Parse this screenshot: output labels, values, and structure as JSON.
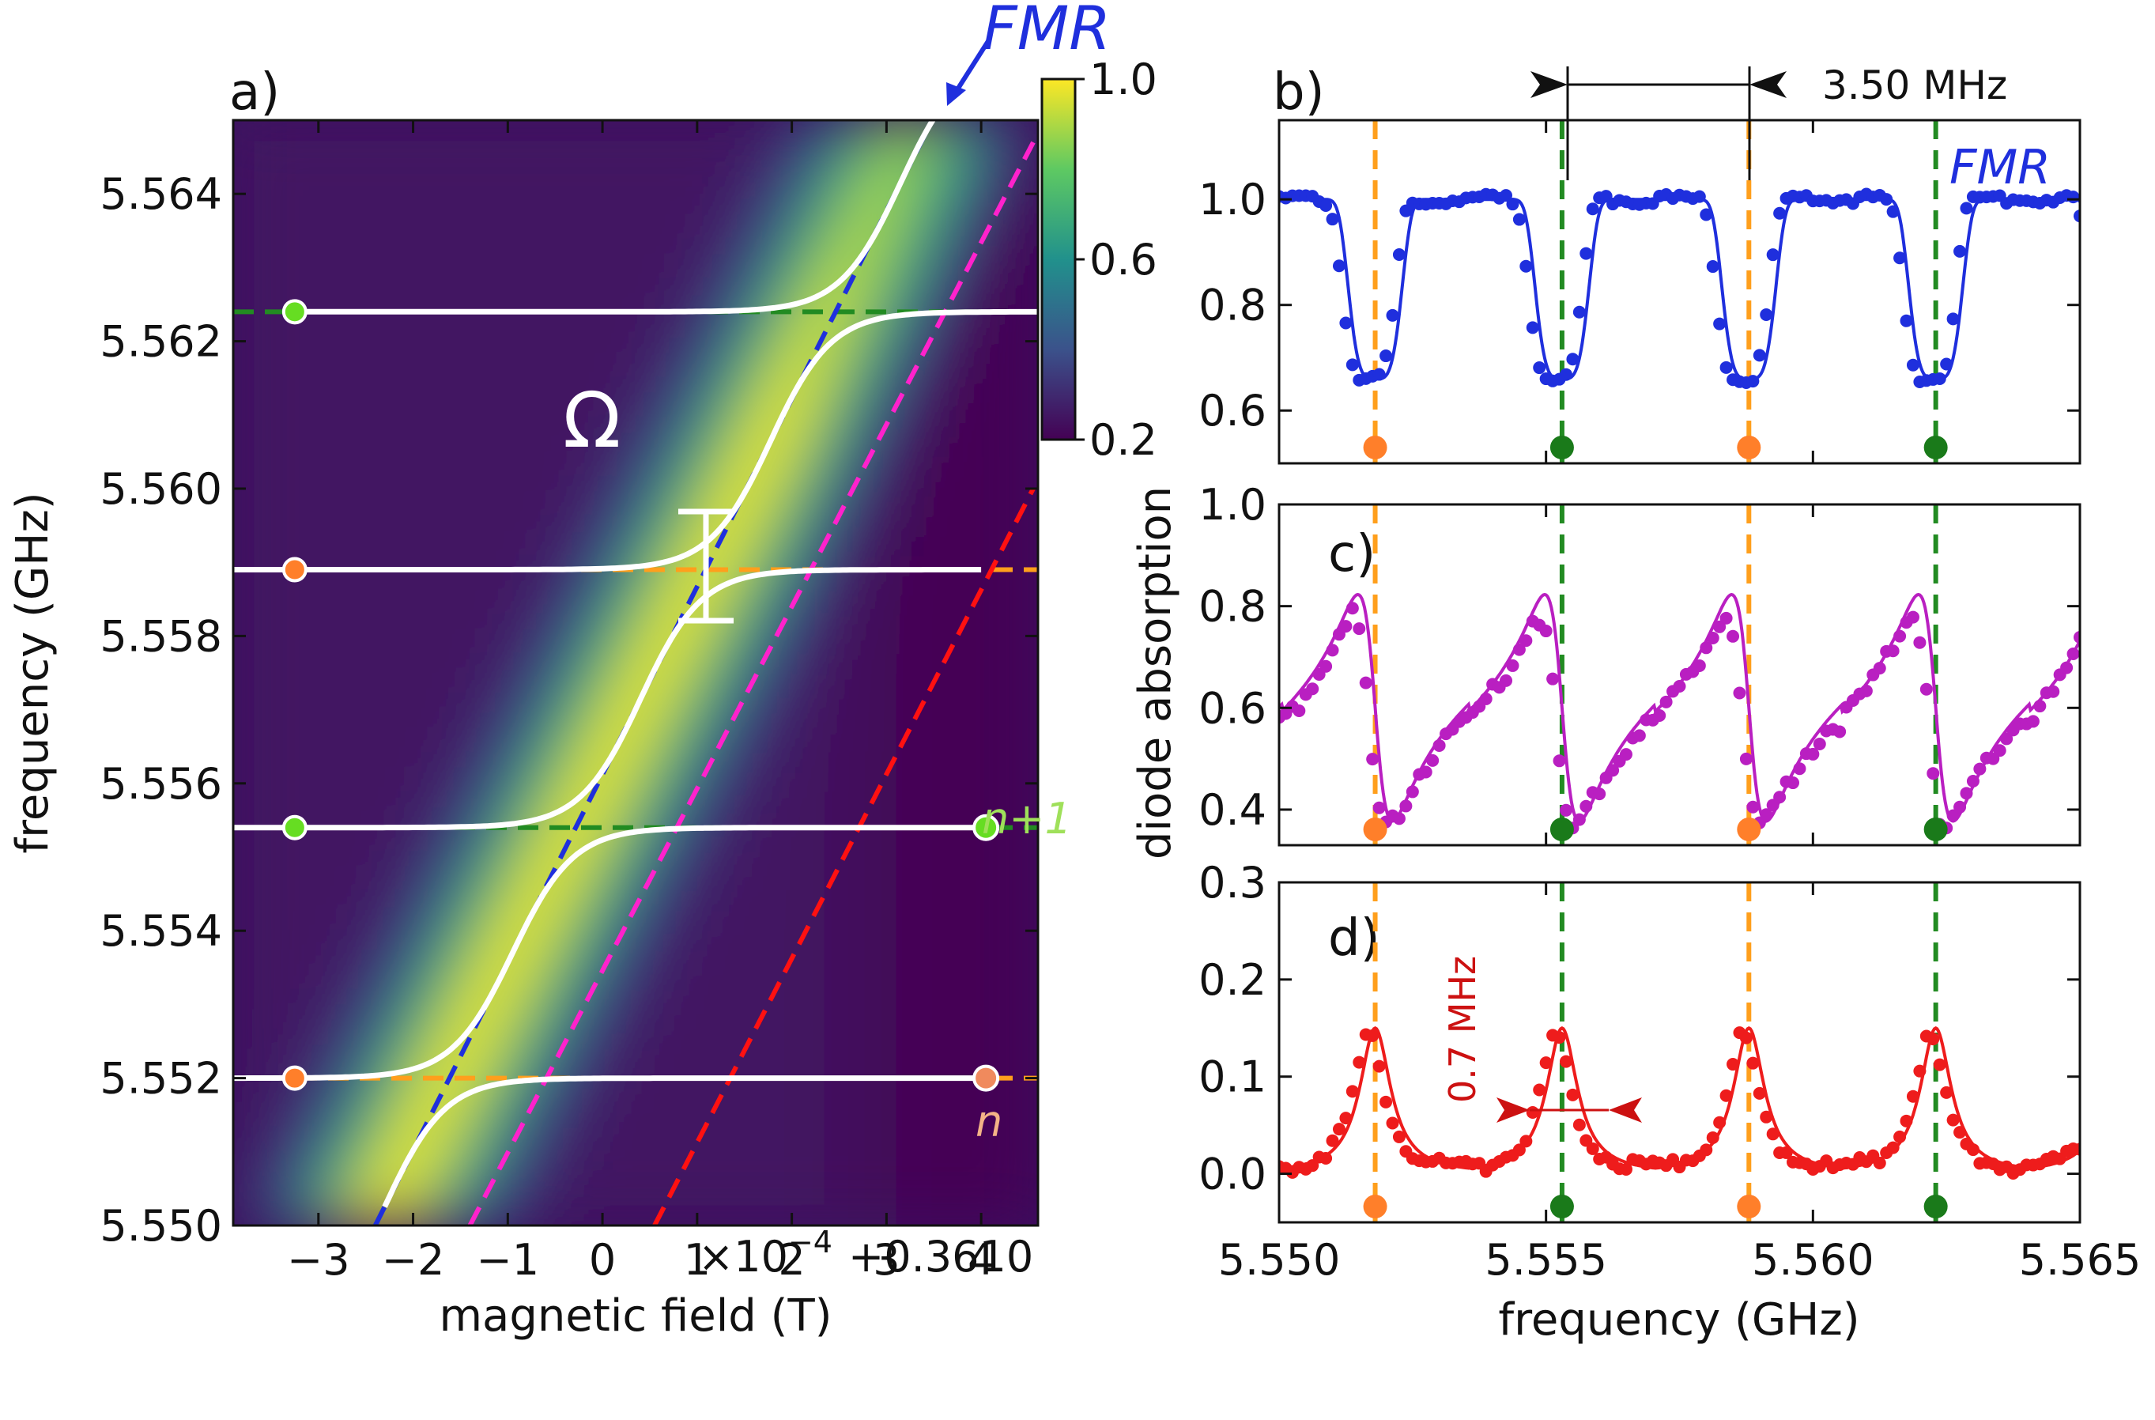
{
  "chart_data": [
    {
      "panel": "a)",
      "type": "heatmap",
      "xlabel": "magnetic field (T)",
      "ylabel": "frequency (GHz)",
      "x_ticks": [
        "−3",
        "−2",
        "−1",
        "0",
        "1",
        "2",
        "3",
        "4"
      ],
      "x_tick_values": [
        -3,
        -2,
        -1,
        0,
        1,
        2,
        3,
        4
      ],
      "x_offset_prefix": "×10",
      "x_offset_exponent": "−4",
      "x_offset_suffix": "+0.3610",
      "xlim": [
        -3.9,
        4.6
      ],
      "ylim": [
        5.55,
        5.565
      ],
      "y_ticks": [
        "5.550",
        "5.552",
        "5.554",
        "5.556",
        "5.558",
        "5.560",
        "5.562",
        "5.564"
      ],
      "y_tick_values": [
        5.55,
        5.552,
        5.554,
        5.556,
        5.558,
        5.56,
        5.562,
        5.564
      ],
      "colorbar": {
        "min": 0.2,
        "max": 1.0,
        "ticks": [
          "1.0",
          "0.6",
          "0.2"
        ],
        "tick_values": [
          1.0,
          0.6,
          0.2
        ]
      },
      "colorscale": [
        "#440154",
        "#3b528b",
        "#21918c",
        "#5ec962",
        "#fde725"
      ],
      "cavity_modes_ghz": [
        5.5624,
        5.5589,
        5.5554,
        5.552
      ],
      "mode_colors": [
        "#228b22",
        "#ff9f1c",
        "#228b22",
        "#ff9f1c"
      ],
      "mode_marker_colors": [
        "#66dd22",
        "#ff7f2a",
        "#66dd22",
        "#ff7f2a"
      ],
      "fmr_line": {
        "color": "#1f2fdd",
        "x": [
          -2.4,
          3.6
        ],
        "y": [
          5.55,
          5.5653
        ]
      },
      "magenta_line": {
        "color": "#ff22cc",
        "x": [
          -1.4,
          4.55
        ],
        "y": [
          5.55,
          5.5647
        ]
      },
      "red_line": {
        "color": "#ff1111",
        "x": [
          0.55,
          4.55
        ],
        "y": [
          5.55,
          5.56
        ]
      },
      "annotations": {
        "fmr": "FMR",
        "omega": "Ω",
        "n_plus_1": "n+1",
        "n": "n"
      }
    },
    {
      "panel": "b)",
      "type": "line",
      "ylim": [
        0.5,
        1.15
      ],
      "y_ticks": [
        "0.6",
        "0.8",
        "1.0"
      ],
      "y_tick_values": [
        0.6,
        0.8,
        1.0
      ],
      "series_color": "#1f2fdd",
      "label": "FMR",
      "spacing_label": "3.50 MHz"
    },
    {
      "panel": "c)",
      "type": "line",
      "ylim": [
        0.33,
        1.0
      ],
      "y_ticks": [
        "0.4",
        "0.6",
        "0.8",
        "1.0"
      ],
      "y_tick_values": [
        0.4,
        0.6,
        0.8,
        1.0
      ],
      "series_color": "#b91fc1"
    },
    {
      "panel": "d)",
      "type": "line",
      "ylim": [
        -0.05,
        0.3
      ],
      "y_ticks": [
        "0.0",
        "0.1",
        "0.2",
        "0.3"
      ],
      "y_tick_values": [
        0.0,
        0.1,
        0.2,
        0.3
      ],
      "series_color": "#ee1c1c",
      "linewidth_label": "0.7 MHz"
    },
    {
      "shared": "right-column",
      "xlabel": "frequency (GHz)",
      "ylabel": "diode absorption",
      "xlim": [
        5.55,
        5.565
      ],
      "x_ticks": [
        "5.550",
        "5.555",
        "5.560",
        "5.565"
      ],
      "x_tick_values": [
        5.55,
        5.555,
        5.56,
        5.565
      ],
      "mode_freqs_ghz": [
        5.5518,
        5.5553,
        5.5588,
        5.5623
      ],
      "mode_colors": [
        "#ff9f1c",
        "#228b22",
        "#ff9f1c",
        "#228b22"
      ],
      "mode_marker_colors": [
        "#ff7f2a",
        "#1a7a1a",
        "#ff7f2a",
        "#1a7a1a"
      ]
    }
  ]
}
